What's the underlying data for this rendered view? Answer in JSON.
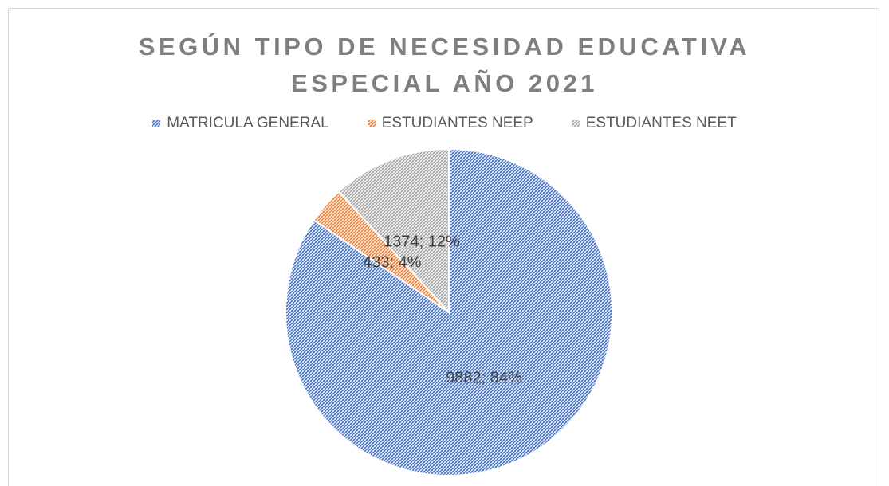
{
  "chart_data": {
    "type": "pie",
    "title": "SEGÚN TIPO DE NECESIDAD EDUCATIVA ESPECIAL AÑO 2021",
    "categories": [
      "MATRICULA GENERAL",
      "ESTUDIANTES NEEP",
      "ESTUDIANTES NEET"
    ],
    "values": [
      9882,
      433,
      1374
    ],
    "value_labels": [
      "9882; 84%",
      "433; 4%",
      "1374; 12%"
    ],
    "colors": [
      "#4472c4",
      "#ed7d31",
      "#a5a5a5"
    ],
    "legend": "top"
  }
}
